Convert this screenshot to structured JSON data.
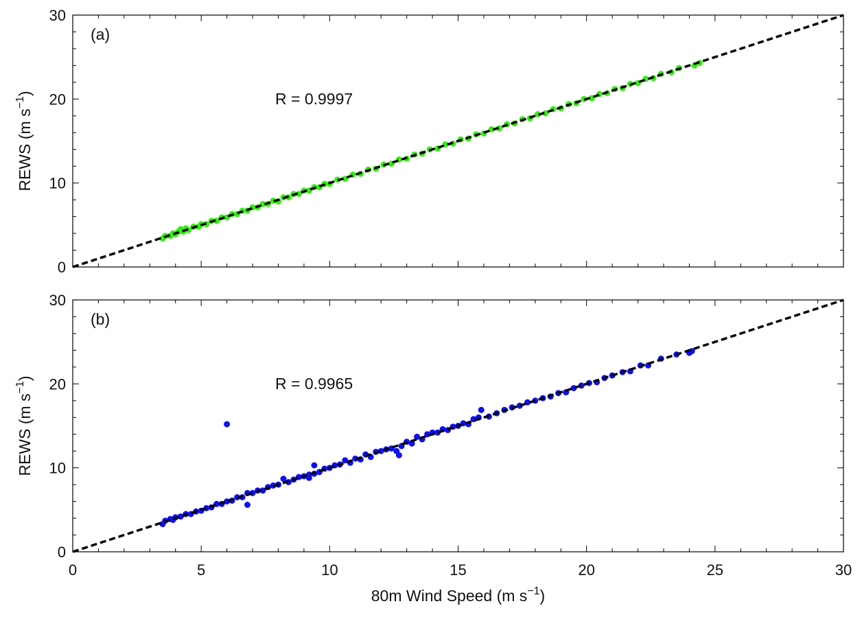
{
  "chart_data": [
    {
      "type": "scatter",
      "panel_label": "(a)",
      "annotation": "R = 0.9997",
      "xlabel": "",
      "ylabel_main": "REWS (m s",
      "ylabel_sup": "−1",
      "ylabel_end": ")",
      "xlim": [
        0,
        30
      ],
      "ylim": [
        0,
        30
      ],
      "xticks": [
        "0",
        "5",
        "10",
        "15",
        "20",
        "25",
        "30"
      ],
      "yticks": [
        "0",
        "10",
        "20",
        "30"
      ],
      "show_xtick_labels": false,
      "point_color": "#33ee11",
      "reference_line": {
        "style": "dashed",
        "color": "#000000",
        "x": [
          0,
          30
        ],
        "y": [
          0,
          30
        ]
      },
      "series": [
        {
          "x": [
            3.5,
            3.6,
            3.8,
            3.9,
            4.0,
            4.1,
            4.2,
            4.3,
            4.4,
            4.5,
            4.7,
            4.9,
            5.0,
            5.2,
            5.4,
            5.6,
            5.8,
            6.0,
            6.2,
            6.4,
            6.6,
            6.8,
            7.0,
            7.2,
            7.4,
            7.6,
            7.8,
            8.0,
            8.2,
            8.4,
            8.6,
            8.8,
            9.0,
            9.2,
            9.4,
            9.6,
            9.8,
            10.0,
            10.3,
            10.6,
            10.9,
            11.2,
            11.5,
            11.8,
            12.1,
            12.4,
            12.7,
            13.0,
            13.3,
            13.6,
            13.9,
            14.2,
            14.5,
            14.8,
            15.1,
            15.4,
            15.7,
            16.0,
            16.3,
            16.6,
            16.9,
            17.2,
            17.5,
            17.8,
            18.1,
            18.4,
            18.7,
            19.0,
            19.3,
            19.6,
            19.9,
            20.2,
            20.5,
            20.8,
            21.1,
            21.4,
            21.7,
            22.0,
            22.3,
            22.6,
            22.9,
            23.3,
            23.6,
            24.2,
            24.4
          ],
          "y": [
            3.4,
            3.7,
            3.7,
            4.0,
            3.9,
            4.2,
            4.5,
            4.2,
            4.6,
            4.4,
            4.8,
            4.8,
            5.1,
            5.1,
            5.5,
            5.5,
            5.9,
            5.9,
            6.3,
            6.3,
            6.7,
            6.7,
            7.1,
            7.1,
            7.5,
            7.5,
            7.9,
            7.8,
            8.3,
            8.3,
            8.7,
            8.7,
            9.1,
            9.1,
            9.5,
            9.5,
            9.9,
            9.9,
            10.4,
            10.5,
            11.0,
            11.1,
            11.6,
            11.7,
            12.2,
            12.3,
            12.8,
            12.9,
            13.4,
            13.5,
            14.0,
            14.1,
            14.6,
            14.7,
            15.2,
            15.3,
            15.8,
            15.9,
            16.4,
            16.5,
            17.0,
            17.1,
            17.6,
            17.7,
            18.2,
            18.3,
            18.8,
            18.9,
            19.4,
            19.5,
            20.0,
            20.1,
            20.6,
            20.7,
            21.2,
            21.3,
            21.8,
            21.9,
            22.4,
            22.5,
            23.0,
            23.2,
            23.7,
            24.0,
            24.3
          ]
        }
      ]
    },
    {
      "type": "scatter",
      "panel_label": "(b)",
      "annotation": "R = 0.9965",
      "xlabel_main": "80m Wind Speed (m s",
      "xlabel_sup": "−1",
      "xlabel_end": ")",
      "ylabel_main": "REWS (m s",
      "ylabel_sup": "−1",
      "ylabel_end": ")",
      "xlim": [
        0,
        30
      ],
      "ylim": [
        0,
        30
      ],
      "xticks": [
        "0",
        "5",
        "10",
        "15",
        "20",
        "25",
        "30"
      ],
      "yticks": [
        "0",
        "10",
        "20",
        "30"
      ],
      "show_xtick_labels": true,
      "point_color": "#1010ee",
      "reference_line": {
        "style": "dashed",
        "color": "#000000",
        "x": [
          0,
          30
        ],
        "y": [
          0,
          30
        ]
      },
      "series": [
        {
          "x": [
            3.5,
            3.6,
            3.8,
            3.9,
            4.0,
            4.2,
            4.4,
            4.6,
            4.8,
            5.0,
            5.2,
            5.4,
            5.6,
            5.8,
            6.0,
            6.2,
            6.4,
            6.6,
            6.8,
            6.8,
            7.0,
            7.2,
            7.4,
            7.6,
            7.8,
            8.0,
            8.2,
            8.4,
            8.6,
            8.8,
            9.0,
            9.2,
            9.4,
            9.4,
            9.6,
            9.8,
            10.0,
            10.2,
            10.4,
            10.6,
            10.8,
            11.0,
            11.2,
            11.4,
            11.6,
            11.8,
            12.0,
            12.2,
            12.4,
            12.6,
            12.8,
            13.0,
            13.2,
            13.4,
            13.6,
            13.8,
            14.0,
            14.2,
            14.4,
            14.6,
            14.8,
            15.0,
            15.2,
            15.4,
            15.6,
            15.8,
            15.9,
            16.2,
            16.5,
            16.8,
            17.1,
            17.4,
            17.7,
            18.0,
            18.3,
            18.6,
            18.9,
            19.2,
            19.5,
            19.8,
            20.1,
            20.4,
            20.7,
            21.0,
            21.4,
            21.7,
            22.1,
            22.4,
            22.9,
            23.5,
            24.0,
            24.1,
            6.0,
            12.7,
            9.2
          ],
          "y": [
            3.3,
            3.7,
            3.9,
            3.8,
            4.1,
            4.2,
            4.5,
            4.5,
            4.8,
            4.9,
            5.2,
            5.3,
            5.7,
            5.7,
            6.0,
            6.1,
            6.5,
            6.5,
            5.6,
            7.0,
            7.0,
            7.3,
            7.3,
            7.7,
            7.9,
            8.0,
            8.7,
            8.3,
            8.6,
            8.9,
            9.0,
            9.2,
            9.3,
            10.3,
            9.5,
            9.9,
            10.0,
            10.3,
            10.4,
            10.9,
            10.6,
            11.1,
            11.0,
            11.6,
            11.3,
            11.9,
            12.0,
            12.2,
            12.3,
            12.0,
            12.6,
            13.1,
            12.9,
            13.7,
            13.4,
            14.0,
            14.2,
            14.2,
            14.6,
            14.5,
            14.9,
            15.0,
            15.3,
            15.2,
            15.8,
            16.0,
            16.9,
            16.1,
            16.5,
            16.9,
            17.2,
            17.4,
            17.8,
            18.0,
            18.3,
            18.5,
            18.9,
            19.0,
            19.5,
            19.8,
            20.1,
            20.2,
            20.7,
            21.0,
            21.4,
            21.5,
            22.2,
            22.2,
            23.0,
            23.5,
            23.7,
            23.9,
            15.2,
            11.5,
            8.8
          ]
        }
      ]
    }
  ]
}
